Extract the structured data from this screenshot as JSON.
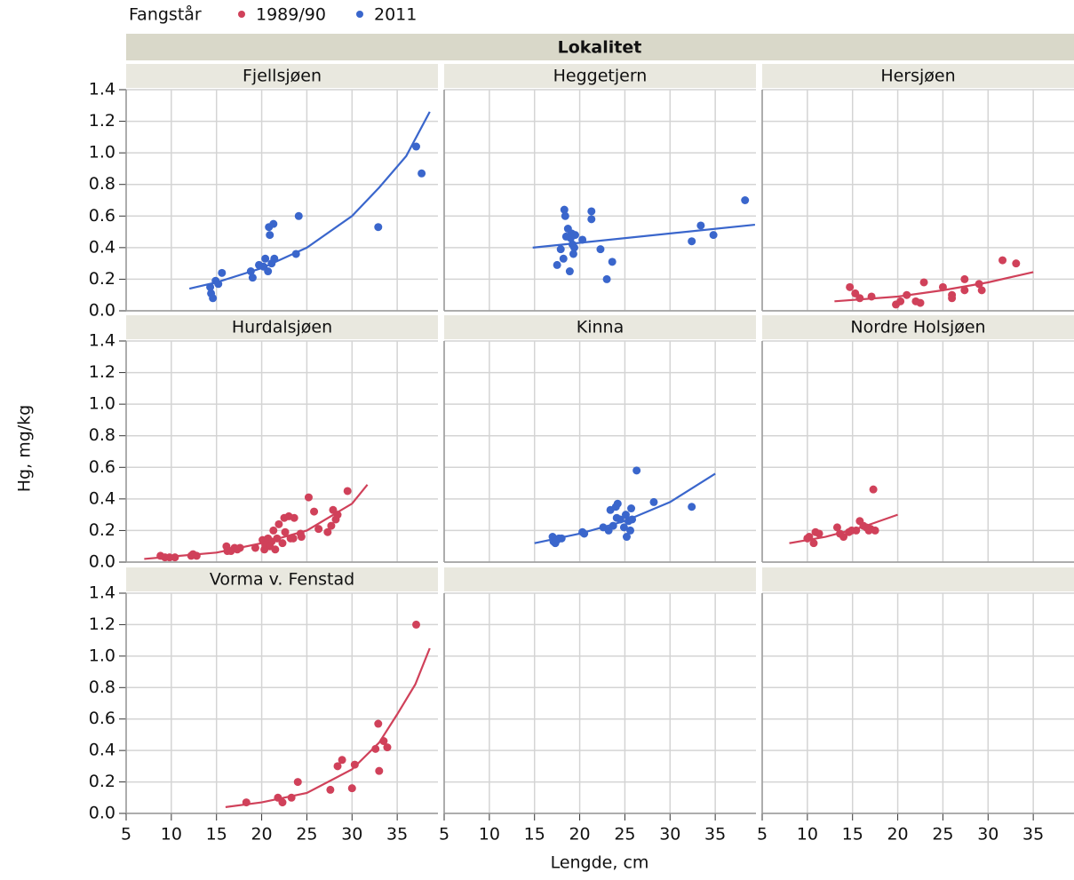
{
  "facet_title": "Lokalitet",
  "legend": {
    "title": "Fangstår",
    "series": [
      {
        "name": "1989/90",
        "color": "#d0415a"
      },
      {
        "name": "2011",
        "color": "#3a66cc"
      }
    ]
  },
  "x_label": "Lengde, cm",
  "y_label": "Hg, mg/kg",
  "axes": {
    "xlim": [
      5,
      40
    ],
    "xticks": [
      5,
      10,
      15,
      20,
      25,
      30,
      35
    ],
    "ylim": [
      0,
      1.4
    ],
    "yticks": [
      {
        "value": 0,
        "label": "0.0"
      },
      0.2,
      0.4,
      0.6,
      0.8,
      {
        "value": 1,
        "label": "1.0"
      },
      1.2,
      1.4
    ]
  },
  "chart_data": [
    {
      "type": "scatter",
      "title": "Fjellsjøen",
      "series": [
        {
          "name": "2011",
          "color": "#3a66cc",
          "x": [
            14.3,
            14.4,
            14.6,
            14.9,
            15.2,
            15.6,
            18.8,
            19.0,
            19.7,
            20.2,
            20.4,
            20.7,
            20.8,
            20.9,
            21.1,
            21.3,
            21.4,
            23.8,
            24.1,
            32.9,
            37.1,
            37.7
          ],
          "values": [
            0.15,
            0.11,
            0.08,
            0.19,
            0.17,
            0.24,
            0.25,
            0.21,
            0.29,
            0.28,
            0.33,
            0.25,
            0.53,
            0.48,
            0.3,
            0.55,
            0.33,
            0.36,
            0.6,
            0.53,
            1.04,
            0.87
          ]
        }
      ],
      "fit": {
        "x": [
          12,
          15,
          20,
          25,
          30,
          33,
          36,
          38.6
        ],
        "values": [
          0.14,
          0.18,
          0.27,
          0.4,
          0.6,
          0.78,
          0.98,
          1.26
        ]
      }
    },
    {
      "type": "scatter",
      "title": "Heggetjern",
      "series": [
        {
          "name": "2011",
          "color": "#3a66cc",
          "x": [
            17.5,
            17.9,
            18.2,
            18.3,
            18.4,
            18.5,
            18.7,
            18.9,
            19.0,
            19.1,
            19.2,
            19.3,
            19.4,
            19.5,
            20.3,
            21.3,
            21.3,
            22.3,
            23.0,
            23.6,
            32.4,
            33.4,
            34.8,
            38.3
          ],
          "values": [
            0.29,
            0.39,
            0.33,
            0.64,
            0.6,
            0.47,
            0.52,
            0.25,
            0.46,
            0.49,
            0.42,
            0.36,
            0.4,
            0.48,
            0.45,
            0.63,
            0.58,
            0.39,
            0.2,
            0.31,
            0.44,
            0.54,
            0.48,
            0.7
          ]
        }
      ],
      "fit": {
        "x": [
          14.8,
          39.4
        ],
        "values": [
          0.4,
          0.545
        ]
      }
    },
    {
      "type": "scatter",
      "title": "Hersjøen",
      "series": [
        {
          "name": "1989/90",
          "color": "#d0415a",
          "x": [
            14.7,
            15.3,
            15.8,
            17.1,
            19.8,
            20.3,
            21.0,
            22.0,
            22.5,
            22.9,
            25.0,
            26.0,
            26.0,
            27.4,
            27.4,
            29.0,
            29.3,
            31.6,
            33.1
          ],
          "values": [
            0.15,
            0.11,
            0.08,
            0.09,
            0.04,
            0.06,
            0.1,
            0.06,
            0.05,
            0.18,
            0.15,
            0.1,
            0.08,
            0.13,
            0.2,
            0.17,
            0.13,
            0.32,
            0.3
          ]
        }
      ],
      "fit": {
        "x": [
          13,
          20,
          25,
          30,
          35
        ],
        "values": [
          0.06,
          0.09,
          0.13,
          0.18,
          0.245
        ]
      }
    },
    {
      "type": "scatter",
      "title": "Hurdalsjøen",
      "series": [
        {
          "name": "1989/90",
          "color": "#d0415a",
          "x": [
            8.8,
            9.3,
            9.8,
            10.4,
            12.2,
            12.4,
            12.8,
            16.1,
            16.2,
            16.6,
            17.0,
            17.3,
            17.6,
            19.3,
            20.1,
            20.3,
            20.4,
            20.7,
            20.9,
            21.1,
            21.3,
            21.5,
            21.7,
            21.9,
            22.3,
            22.5,
            22.6,
            23.0,
            23.2,
            23.5,
            23.6,
            24.3,
            24.4,
            25.2,
            25.8,
            26.3,
            27.3,
            27.7,
            27.9,
            28.2,
            28.4,
            29.5
          ],
          "values": [
            0.04,
            0.03,
            0.03,
            0.03,
            0.04,
            0.05,
            0.04,
            0.1,
            0.07,
            0.07,
            0.09,
            0.08,
            0.09,
            0.09,
            0.14,
            0.08,
            0.11,
            0.15,
            0.1,
            0.13,
            0.2,
            0.08,
            0.15,
            0.24,
            0.12,
            0.28,
            0.19,
            0.29,
            0.15,
            0.15,
            0.28,
            0.18,
            0.16,
            0.41,
            0.32,
            0.21,
            0.19,
            0.23,
            0.33,
            0.27,
            0.3,
            0.45
          ]
        }
      ],
      "fit": {
        "x": [
          7,
          10,
          15,
          20,
          25,
          30,
          31.7
        ],
        "values": [
          0.02,
          0.035,
          0.06,
          0.12,
          0.2,
          0.37,
          0.49
        ]
      }
    },
    {
      "type": "scatter",
      "title": "Kinna",
      "series": [
        {
          "name": "2011",
          "color": "#3a66cc",
          "x": [
            17.0,
            17.1,
            17.3,
            17.5,
            17.7,
            18.0,
            20.3,
            20.5,
            22.6,
            23.2,
            23.4,
            23.7,
            24.0,
            24.2,
            24.1,
            24.5,
            24.9,
            25.1,
            25.2,
            25.4,
            25.6,
            25.7,
            25.8,
            26.3,
            28.2,
            32.4
          ],
          "values": [
            0.16,
            0.13,
            0.12,
            0.14,
            0.15,
            0.15,
            0.19,
            0.18,
            0.22,
            0.2,
            0.33,
            0.23,
            0.35,
            0.37,
            0.28,
            0.27,
            0.22,
            0.3,
            0.16,
            0.26,
            0.2,
            0.34,
            0.27,
            0.58,
            0.38,
            0.35
          ]
        }
      ],
      "fit": {
        "x": [
          15,
          20,
          25,
          30,
          35
        ],
        "values": [
          0.12,
          0.18,
          0.26,
          0.38,
          0.56
        ]
      }
    },
    {
      "type": "scatter",
      "title": "Nordre Holsjøen",
      "series": [
        {
          "name": "1989/90",
          "color": "#d0415a",
          "x": [
            10.0,
            10.2,
            10.7,
            10.9,
            11.3,
            13.3,
            13.6,
            14.0,
            14.6,
            14.9,
            15.4,
            15.8,
            16.2,
            16.5,
            16.8,
            17.0,
            17.3,
            17.5
          ],
          "values": [
            0.15,
            0.16,
            0.12,
            0.19,
            0.18,
            0.22,
            0.18,
            0.16,
            0.19,
            0.2,
            0.2,
            0.26,
            0.23,
            0.22,
            0.2,
            0.21,
            0.46,
            0.2
          ]
        }
      ],
      "fit": {
        "x": [
          8,
          12,
          16,
          20
        ],
        "values": [
          0.12,
          0.16,
          0.22,
          0.3
        ]
      }
    },
    {
      "type": "scatter",
      "title": "Vorma v. Fenstad",
      "series": [
        {
          "name": "1989/90",
          "color": "#d0415a",
          "x": [
            18.3,
            21.8,
            22.3,
            23.3,
            24.0,
            27.6,
            28.4,
            28.9,
            30.0,
            30.3,
            32.6,
            32.9,
            33.0,
            33.5,
            33.9,
            37.1
          ],
          "values": [
            0.07,
            0.1,
            0.07,
            0.1,
            0.2,
            0.15,
            0.3,
            0.34,
            0.16,
            0.31,
            0.41,
            0.57,
            0.27,
            0.46,
            0.42,
            1.2
          ]
        }
      ],
      "fit": {
        "x": [
          16,
          20,
          25,
          30,
          33,
          35,
          37,
          38.6
        ],
        "values": [
          0.04,
          0.07,
          0.13,
          0.28,
          0.45,
          0.63,
          0.82,
          1.05
        ]
      }
    }
  ]
}
